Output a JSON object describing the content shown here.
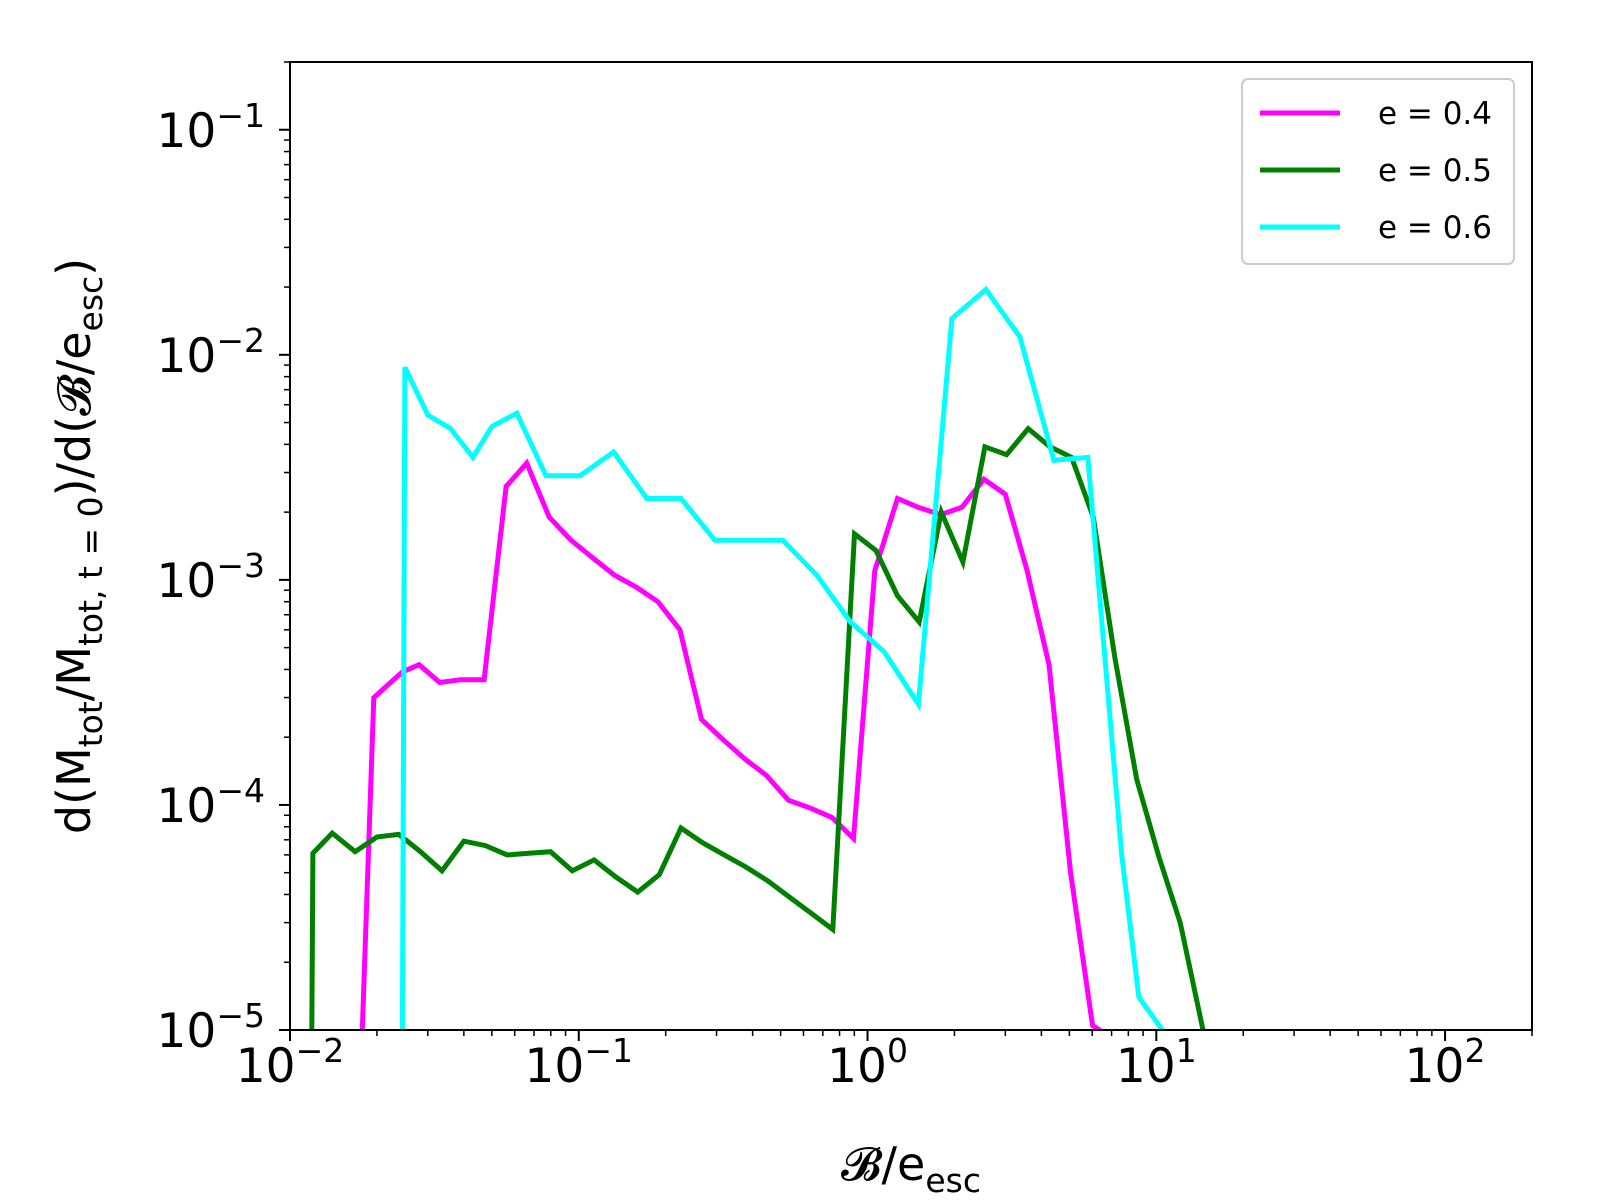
{
  "chart_data": {
    "type": "line",
    "xscale": "log",
    "yscale": "log",
    "xlim": [
      0.01,
      200
    ],
    "ylim": [
      1e-05,
      0.2
    ],
    "x_ticks": [
      {
        "value": 0.01,
        "base": "10",
        "exp": "−2"
      },
      {
        "value": 0.1,
        "base": "10",
        "exp": "−1"
      },
      {
        "value": 1,
        "base": "10",
        "exp": "0"
      },
      {
        "value": 10,
        "base": "10",
        "exp": "1"
      },
      {
        "value": 100,
        "base": "10",
        "exp": "2"
      }
    ],
    "y_ticks": [
      {
        "value": 1e-05,
        "base": "10",
        "exp": "−5"
      },
      {
        "value": 0.0001,
        "base": "10",
        "exp": "−4"
      },
      {
        "value": 0.001,
        "base": "10",
        "exp": "−3"
      },
      {
        "value": 0.01,
        "base": "10",
        "exp": "−2"
      },
      {
        "value": 0.1,
        "base": "10",
        "exp": "−1"
      }
    ],
    "xlabel": {
      "main": "𝓑/e",
      "sub": "esc"
    },
    "ylabel": {
      "pre": "d(M",
      "sub1": "tot",
      "mid": "/M",
      "sub2": "tot, t = 0",
      "post": ")/d(𝓑/e",
      "sub3": "esc",
      "end": ")"
    },
    "legend": {
      "position": "upper right"
    },
    "grid": false,
    "series": [
      {
        "name": "e = 0.4",
        "color": "#ff00ff",
        "x": [
          0.0178,
          0.0195,
          0.0245,
          0.028,
          0.033,
          0.039,
          0.047,
          0.056,
          0.066,
          0.079,
          0.094,
          0.112,
          0.133,
          0.158,
          0.188,
          0.224,
          0.266,
          0.316,
          0.376,
          0.447,
          0.532,
          0.632,
          0.752,
          0.894,
          1.06,
          1.27,
          1.5,
          1.79,
          2.12,
          2.53,
          3.0,
          3.57,
          4.25,
          5.05,
          6.01,
          7.14
        ],
        "y": [
          1e-05,
          0.0003,
          0.00039,
          0.00042,
          0.00035,
          0.00036,
          0.00036,
          0.0026,
          0.0033,
          0.0019,
          0.0015,
          0.00125,
          0.00105,
          0.00093,
          0.0008,
          0.0006,
          0.00024,
          0.000195,
          0.00016,
          0.000135,
          0.000105,
          9.7e-05,
          8.8e-05,
          7.1e-05,
          0.0011,
          0.0023,
          0.0021,
          0.00195,
          0.0021,
          0.0028,
          0.0024,
          0.0011,
          0.00042,
          5e-05,
          1.05e-05,
          9e-06
        ]
      },
      {
        "name": "e = 0.5",
        "color": "#008000",
        "x": [
          0.0119,
          0.012,
          0.014,
          0.0168,
          0.02,
          0.0238,
          0.0283,
          0.0336,
          0.04,
          0.0475,
          0.0565,
          0.0672,
          0.0799,
          0.095,
          0.113,
          0.134,
          0.16,
          0.19,
          0.226,
          0.268,
          0.319,
          0.379,
          0.451,
          0.536,
          0.638,
          0.758,
          0.901,
          1.07,
          1.27,
          1.51,
          1.8,
          2.14,
          2.55,
          3.03,
          3.6,
          4.28,
          5.09,
          6.05,
          7.19,
          8.55,
          10.2,
          12.1,
          14.4,
          15.0
        ],
        "y": [
          1e-05,
          6.1e-05,
          7.5e-05,
          6.2e-05,
          7.2e-05,
          7.4e-05,
          6.2e-05,
          5.1e-05,
          6.9e-05,
          6.6e-05,
          6e-05,
          6.1e-05,
          6.2e-05,
          5.1e-05,
          5.7e-05,
          4.8e-05,
          4.1e-05,
          4.9e-05,
          7.9e-05,
          6.8e-05,
          6e-05,
          5.3e-05,
          4.6e-05,
          3.9e-05,
          3.3e-05,
          2.8e-05,
          0.0016,
          0.00135,
          0.00085,
          0.00065,
          0.002,
          0.0012,
          0.0039,
          0.0036,
          0.0047,
          0.0039,
          0.0035,
          0.0019,
          0.00045,
          0.00013,
          5.9e-05,
          3e-05,
          1.05e-05,
          8e-06
        ]
      },
      {
        "name": "e = 0.6",
        "color": "#00ffff",
        "x": [
          0.0245,
          0.025,
          0.03,
          0.036,
          0.043,
          0.05,
          0.061,
          0.077,
          0.101,
          0.132,
          0.172,
          0.226,
          0.296,
          0.388,
          0.509,
          0.667,
          0.873,
          1.14,
          1.5,
          1.96,
          2.57,
          3.37,
          4.42,
          5.79,
          7.59,
          8.7,
          10.5,
          11.5,
          13.6,
          14.5
        ],
        "y": [
          1e-05,
          0.0088,
          0.0054,
          0.0047,
          0.0035,
          0.0048,
          0.0055,
          0.0029,
          0.0029,
          0.0037,
          0.0023,
          0.0023,
          0.0015,
          0.0015,
          0.0015,
          0.00105,
          0.00065,
          0.00048,
          0.00028,
          0.0145,
          0.0195,
          0.012,
          0.0034,
          0.0035,
          6e-05,
          1.4e-05,
          1e-05,
          8e-06,
          8e-06,
          8e-06
        ]
      }
    ]
  }
}
